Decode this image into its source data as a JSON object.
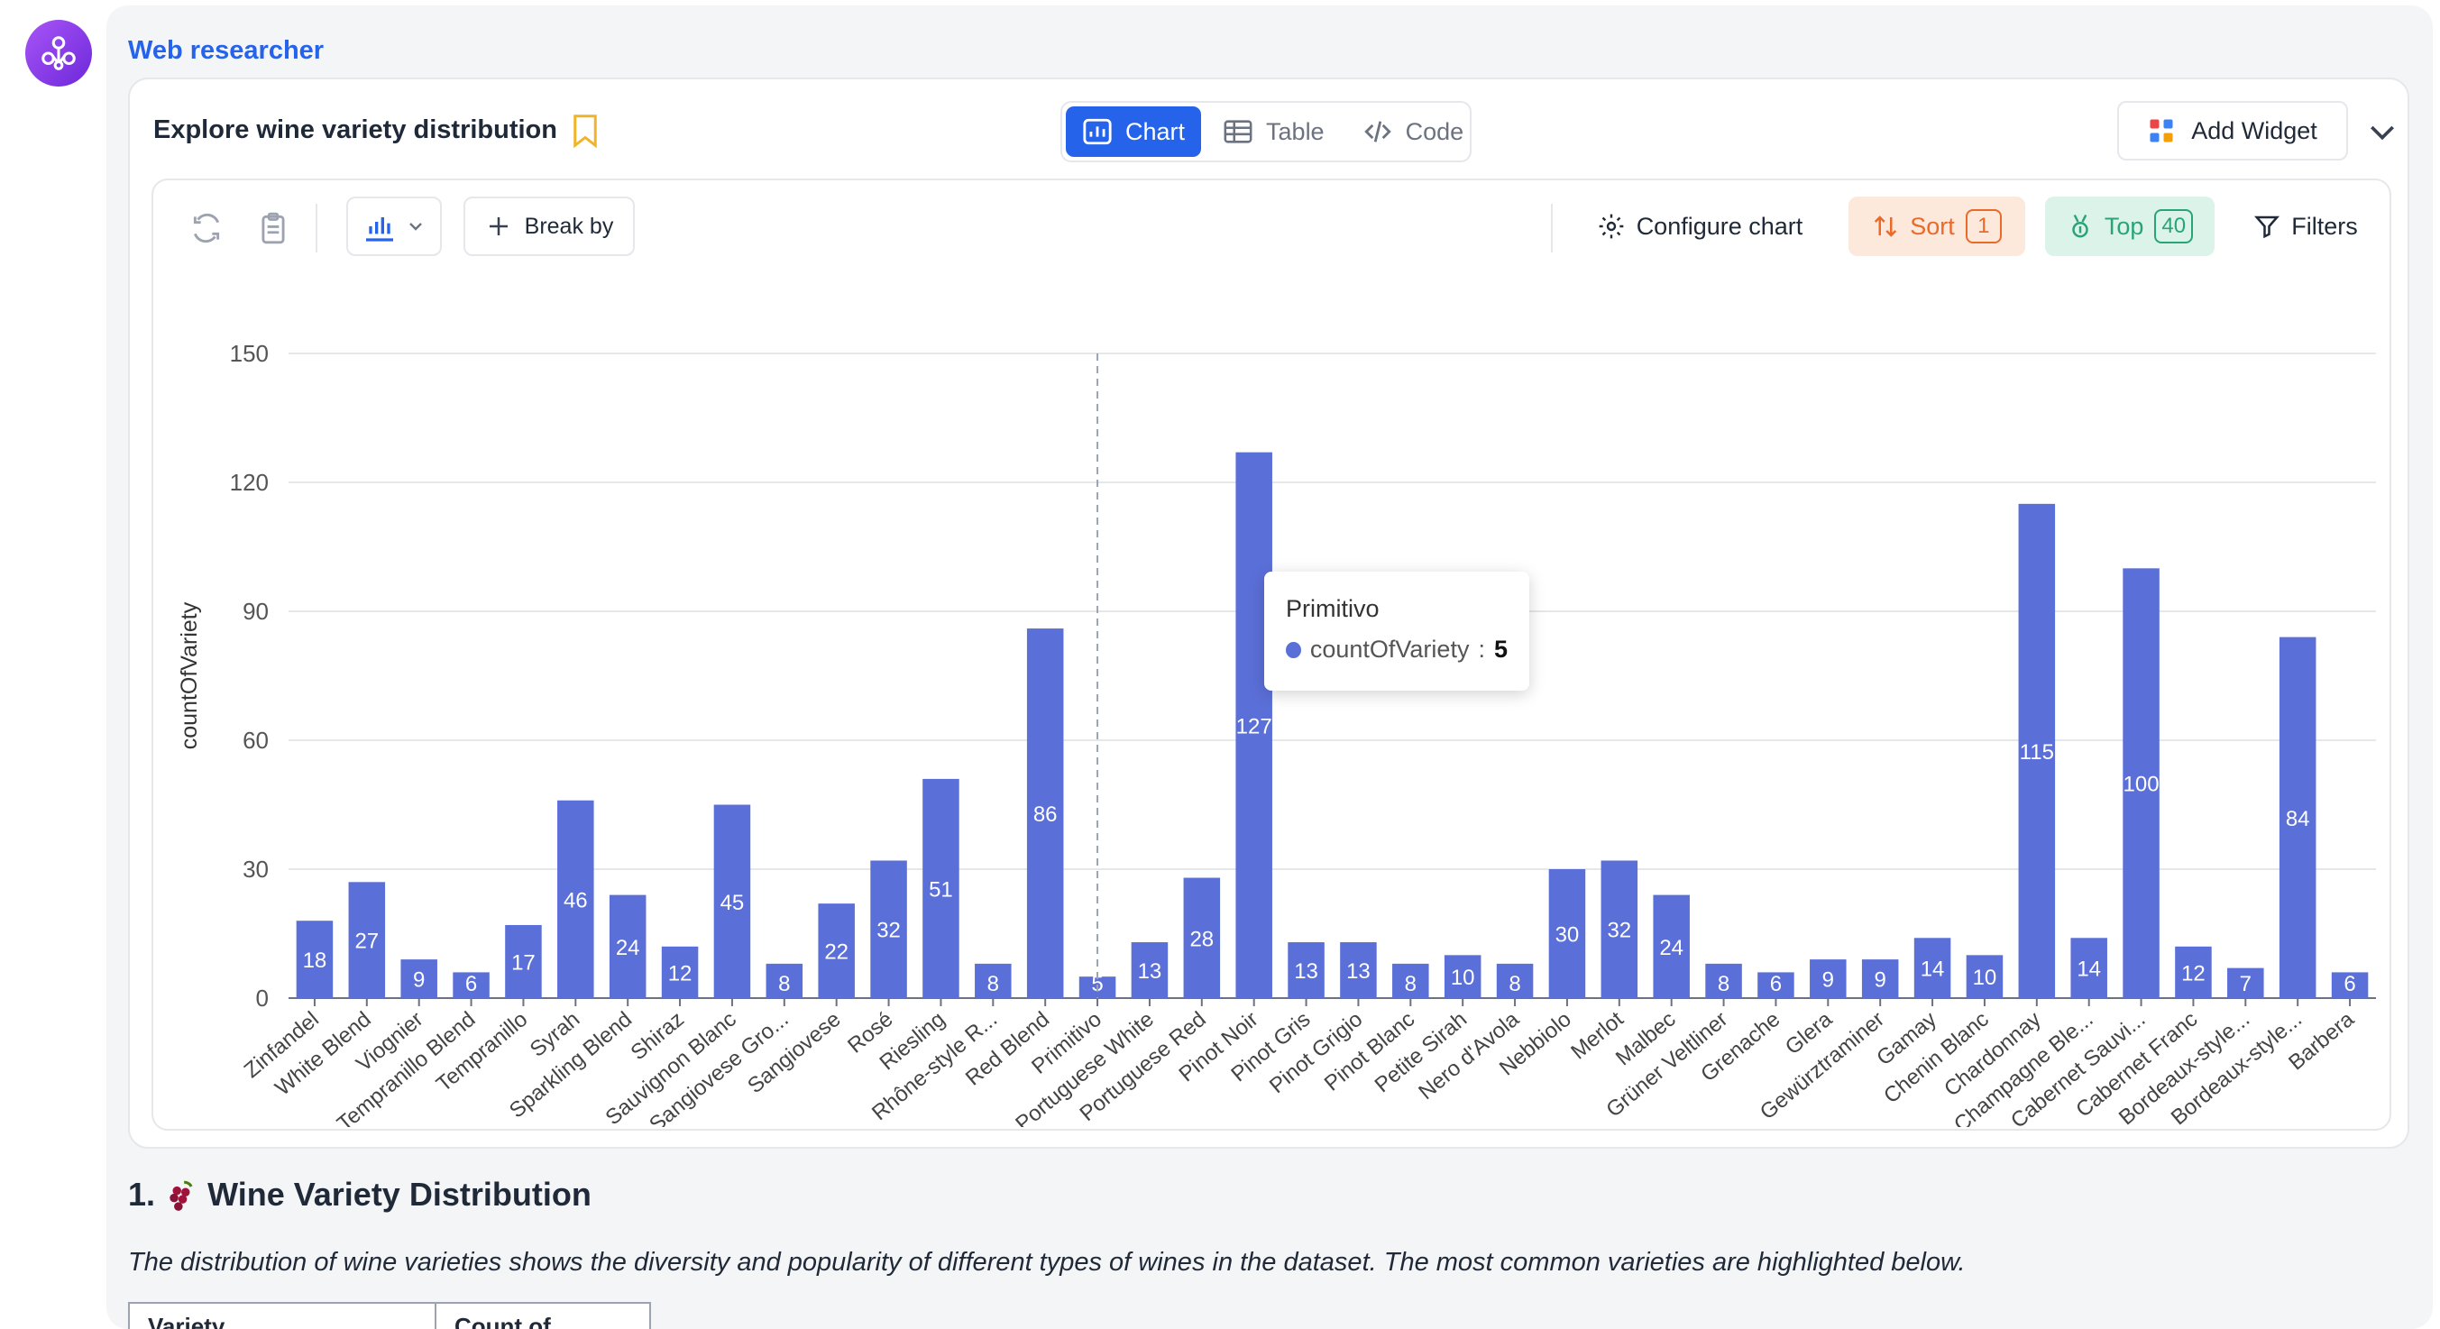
{
  "header": {
    "agent_name": "Web researcher"
  },
  "widget": {
    "title": "Explore wine variety distribution",
    "view_tabs": [
      {
        "label": "Chart",
        "active": true
      },
      {
        "label": "Table",
        "active": false
      },
      {
        "label": "Code",
        "active": false
      }
    ],
    "add_widget_label": "Add Widget"
  },
  "toolbar": {
    "break_by_label": "Break by",
    "configure_label": "Configure chart",
    "sort_label": "Sort",
    "sort_count": "1",
    "top_label": "Top",
    "top_count": "40",
    "filters_label": "Filters"
  },
  "chart_data": {
    "type": "bar",
    "ylabel": "countOfVariety",
    "ylim": [
      0,
      150
    ],
    "yticks": [
      0,
      30,
      60,
      90,
      120,
      150
    ],
    "grid": true,
    "bar_color": "#5b6fd8",
    "categories": [
      "Zinfandel",
      "White Blend",
      "Viognier",
      "Tempranillo Blend",
      "Tempranillo",
      "Syrah",
      "Sparkling Blend",
      "Shiraz",
      "Sauvignon Blanc",
      "Sangiovese Gro...",
      "Sangiovese",
      "Rosé",
      "Riesling",
      "Rhône-style R...",
      "Red Blend",
      "Primitivo",
      "Portuguese White",
      "Portuguese Red",
      "Pinot Noir",
      "Pinot Gris",
      "Pinot Grigio",
      "Pinot Blanc",
      "Petite Sirah",
      "Nero d'Avola",
      "Nebbiolo",
      "Merlot",
      "Malbec",
      "Grüner Veltliner",
      "Grenache",
      "Glera",
      "Gewürztraminer",
      "Gamay",
      "Chenin Blanc",
      "Chardonnay",
      "Champagne Ble...",
      "Cabernet Sauvi...",
      "Cabernet Franc",
      "Bordeaux-style...",
      "Bordeaux-style...",
      "Barbera"
    ],
    "values": [
      18,
      27,
      9,
      6,
      17,
      46,
      24,
      12,
      45,
      8,
      22,
      32,
      51,
      8,
      86,
      5,
      13,
      28,
      127,
      13,
      13,
      8,
      10,
      8,
      30,
      32,
      24,
      8,
      6,
      9,
      9,
      14,
      10,
      115,
      14,
      100,
      12,
      7,
      84,
      6
    ],
    "hover_index": 15
  },
  "tooltip": {
    "title": "Primitivo",
    "series_name": "countOfVariety",
    "value": "5"
  },
  "report": {
    "section_number": "1.",
    "section_title": "Wine Variety Distribution",
    "description": "The distribution of wine varieties shows the diversity and popularity of different types of wines in the dataset. The most common varieties are highlighted below.",
    "table_headers": [
      "Variety",
      "Count of Variety"
    ]
  }
}
